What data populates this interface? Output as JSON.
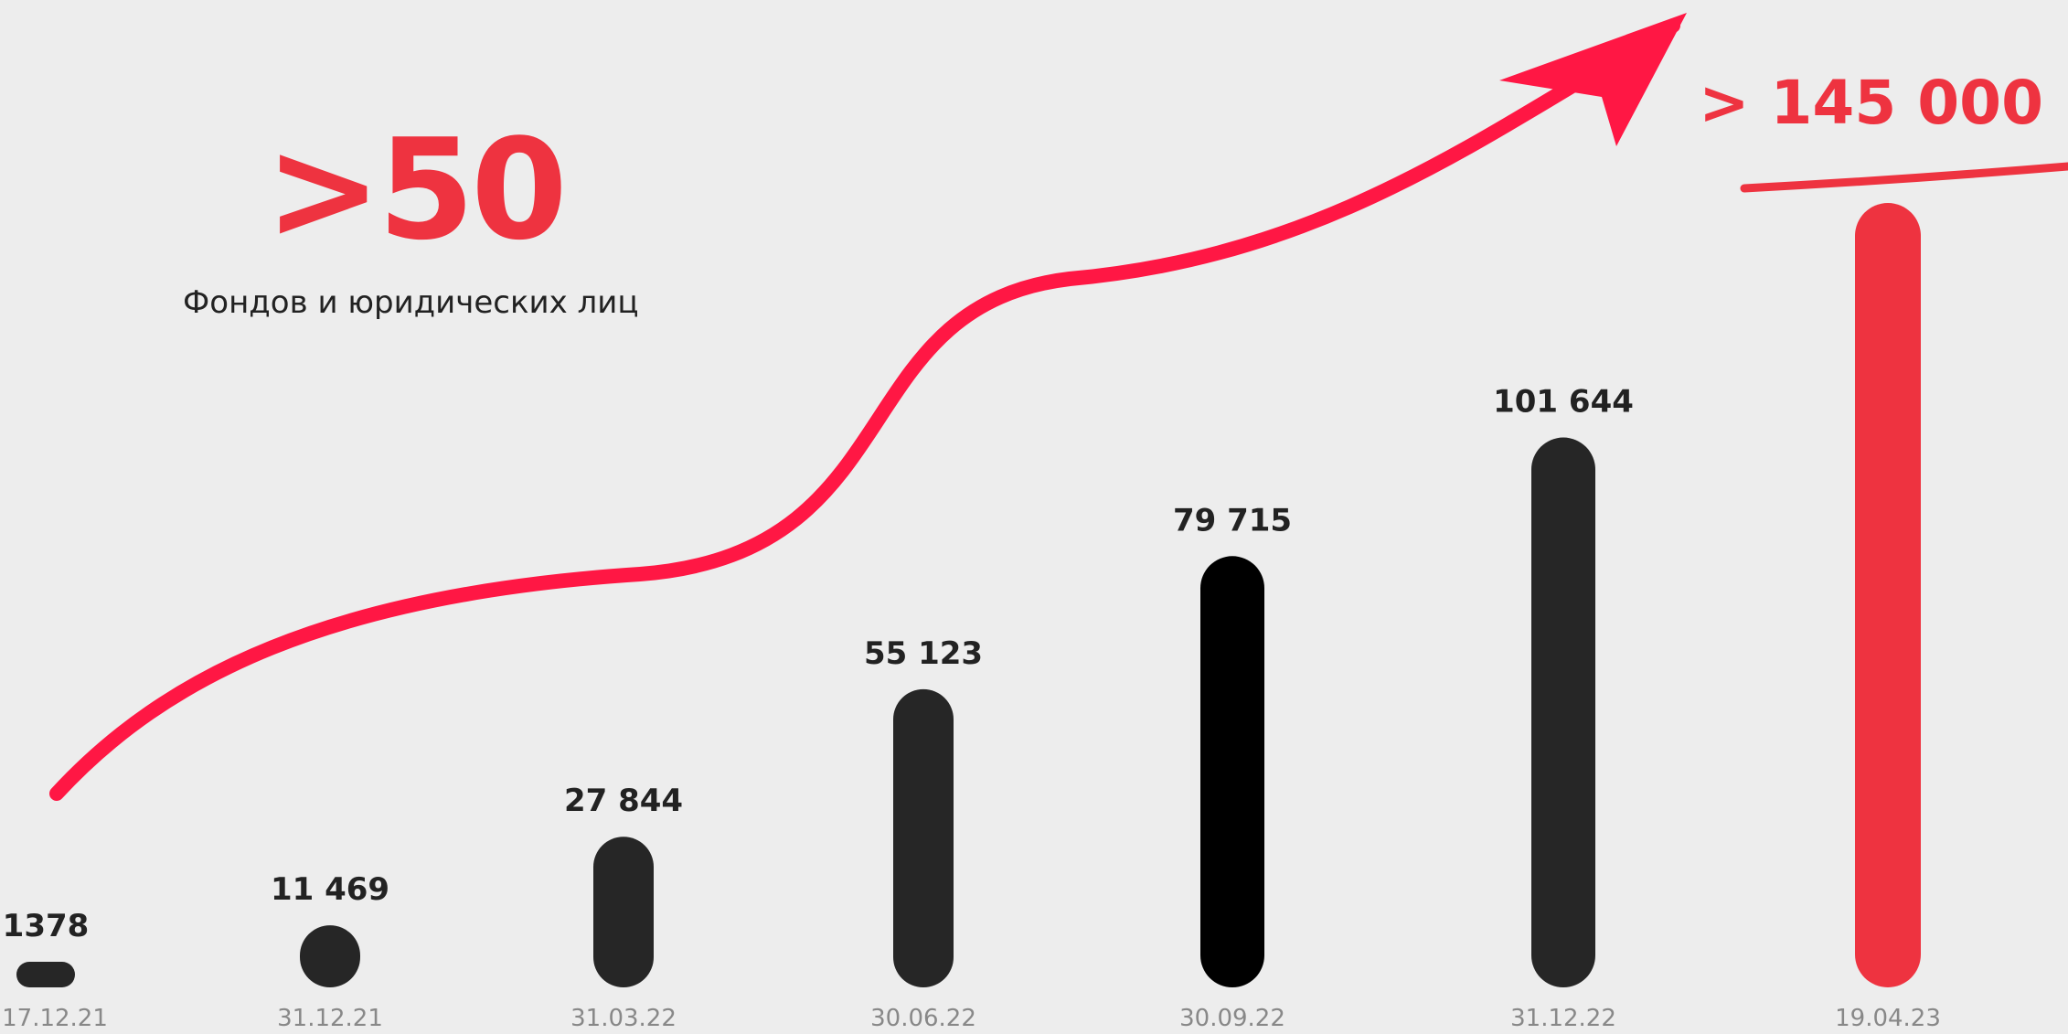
{
  "kpi": {
    "value": ">50",
    "label": "Фондов и юридических лиц"
  },
  "colors": {
    "bar_dark": "#262626",
    "bar_black": "#000000",
    "bar_accent": "#ee3340",
    "arrow": "#ff1744",
    "value_text": "#222222",
    "date_text": "#888888"
  },
  "chart_data": {
    "type": "bar",
    "categories": [
      "17.12.21",
      "31.12.21",
      "31.03.22",
      "30.06.22",
      "30.09.22",
      "31.12.22",
      "19.04.23"
    ],
    "values": [
      1378,
      11469,
      27844,
      55123,
      79715,
      101644,
      145000
    ],
    "value_labels": [
      "1378",
      "11 469",
      "27 844",
      "55 123",
      "79 715",
      "101 644",
      "> 145 000"
    ],
    "highlight_index": 6,
    "title": "",
    "xlabel": "",
    "ylabel": "",
    "trend_arrow": true,
    "grid": false
  }
}
